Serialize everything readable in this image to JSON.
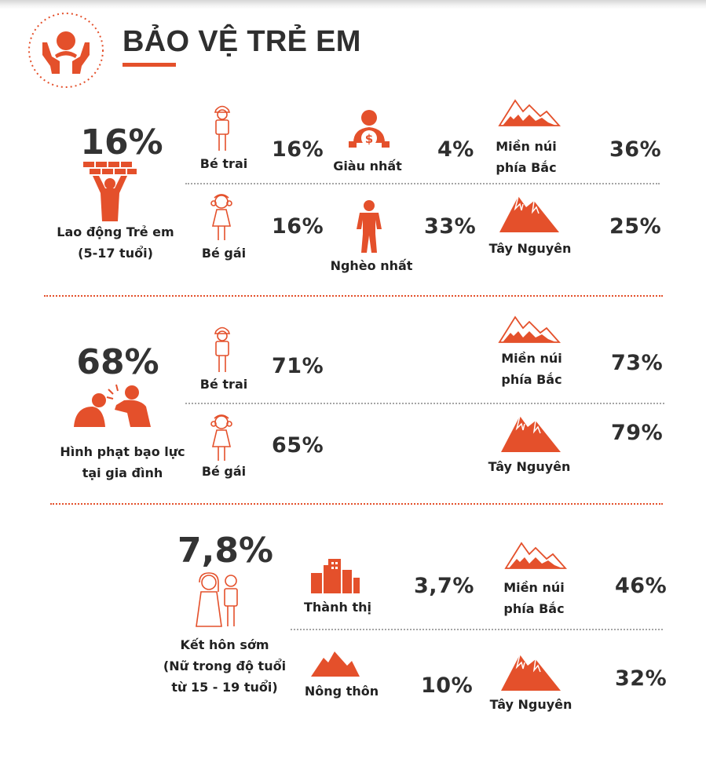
{
  "header": {
    "title": "BẢO VỆ TRẺ EM"
  },
  "colors": {
    "accent": "#e4502b",
    "text": "#2f2f2f"
  },
  "sections": {
    "child_labor": {
      "main_value": "16%",
      "main_label_line1": "Lao động Trẻ em",
      "main_label_line2": "(5-17 tuổi)",
      "boy": {
        "label": "Bé trai",
        "value": "16%"
      },
      "girl": {
        "label": "Bé gái",
        "value": "16%"
      },
      "richest": {
        "label": "Giàu nhất",
        "value": "4%"
      },
      "poorest": {
        "label": "Nghèo nhất",
        "value": "33%"
      },
      "north": {
        "label_line1": "Miền núi",
        "label_line2": "phía Bắc",
        "value": "36%"
      },
      "highlands": {
        "label": "Tây Nguyên",
        "value": "25%"
      }
    },
    "violent_discipline": {
      "main_value": "68%",
      "main_label_line1": "Hình phạt bạo lực",
      "main_label_line2": "tại gia đình",
      "boy": {
        "label": "Bé trai",
        "value": "71%"
      },
      "girl": {
        "label": "Bé gái",
        "value": "65%"
      },
      "north": {
        "label_line1": "Miền núi",
        "label_line2": "phía Bắc",
        "value": "73%"
      },
      "highlands": {
        "label": "Tây Nguyên",
        "value": "79%"
      }
    },
    "early_marriage": {
      "main_value": "7,8%",
      "main_label_line1": "Kết hôn sớm",
      "main_label_line2": "(Nữ trong độ tuổi",
      "main_label_line3": "từ 15 - 19 tuổi)",
      "urban": {
        "label": "Thành thị",
        "value": "3,7%"
      },
      "rural": {
        "label": "Nông thôn",
        "value": "10%"
      },
      "north": {
        "label_line1": "Miền núi",
        "label_line2": "phía Bắc",
        "value": "46%"
      },
      "highlands": {
        "label": "Tây Nguyên",
        "value": "32%"
      }
    }
  }
}
